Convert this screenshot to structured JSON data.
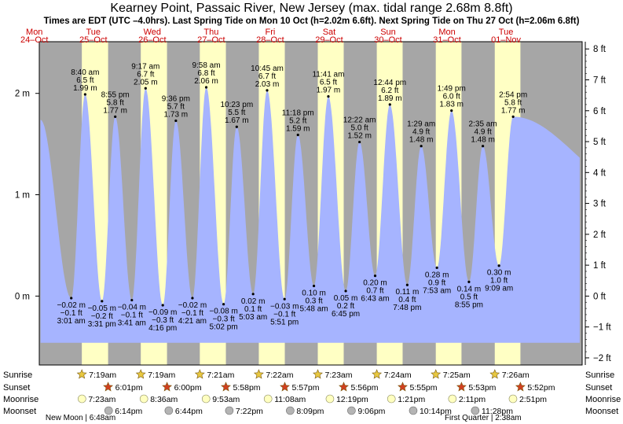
{
  "colors": {
    "night": "#a6a6a6",
    "day": "#ffffc4",
    "water": "#a6b4ff",
    "day_label": "#cc0000",
    "star_sunrise": "#e8c840",
    "star_sunset": "#d04020",
    "moonrise": "#ffffc0",
    "moonset": "#b4b4b4"
  },
  "chart_data": {
    "type": "area",
    "title": "Kearney Point, Passaic River, New Jersey (max. tidal range 2.68m 8.8ft)",
    "subtitle": "Times are EDT (UTC –4.0hrs). Last Spring Tide on Mon 10 Oct (h=2.02m 6.6ft). Next Spring Tide on Thu 27 Oct (h=2.06m 6.8ft)",
    "x_range_hours": [
      -10,
      211
    ],
    "y_range_m": [
      -0.68,
      2.51
    ],
    "y_left_ticks": [
      {
        "v": 0,
        "label": "0 m"
      },
      {
        "v": 1,
        "label": "1 m"
      },
      {
        "v": 2,
        "label": "2 m"
      }
    ],
    "y_right_ticks": [
      {
        "ft": 8,
        "label": "8 ft"
      },
      {
        "ft": 7,
        "label": "7 ft"
      },
      {
        "ft": 6,
        "label": "6 ft"
      },
      {
        "ft": 5,
        "label": "5 ft"
      },
      {
        "ft": 4,
        "label": "4 ft"
      },
      {
        "ft": 3,
        "label": "3 ft"
      },
      {
        "ft": 2,
        "label": "2 ft"
      },
      {
        "ft": 1,
        "label": "1 ft"
      },
      {
        "ft": 0,
        "label": "0 ft"
      },
      {
        "ft": -1,
        "label": "−1 ft"
      },
      {
        "ft": -2,
        "label": "−2 ft"
      }
    ],
    "days": [
      {
        "day": "Mon",
        "date": "24–Oct",
        "noon_h": -12
      },
      {
        "day": "Tue",
        "date": "25–Oct",
        "noon_h": 12
      },
      {
        "day": "Wed",
        "date": "26–Oct",
        "noon_h": 36
      },
      {
        "day": "Thu",
        "date": "27–Oct",
        "noon_h": 60
      },
      {
        "day": "Fri",
        "date": "28–Oct",
        "noon_h": 84
      },
      {
        "day": "Sat",
        "date": "29–Oct",
        "noon_h": 108
      },
      {
        "day": "Sun",
        "date": "30–Oct",
        "noon_h": 132
      },
      {
        "day": "Mon",
        "date": "31–Oct",
        "noon_h": 156
      },
      {
        "day": "Tue",
        "date": "01–Nov",
        "noon_h": 180
      }
    ],
    "daylight": [
      [
        7.32,
        18.02
      ],
      [
        31.32,
        42.0
      ],
      [
        55.35,
        65.97
      ],
      [
        79.37,
        89.95
      ],
      [
        103.38,
        113.93
      ],
      [
        127.4,
        137.92
      ],
      [
        151.42,
        161.88
      ],
      [
        175.43,
        185.87
      ]
    ],
    "curve_start": {
      "h": -9.5,
      "m": 1.74
    },
    "curve_end": {
      "h": 210.0,
      "m": 1.5
    },
    "tides": [
      {
        "time": "3:01 am",
        "h": 3.02,
        "m": -0.02,
        "ft": "−0.1 ft",
        "ml": "−0.02 m",
        "type": "low"
      },
      {
        "time": "8:40 am",
        "h": 8.67,
        "m": 1.99,
        "ft": "6.5 ft",
        "ml": "1.99 m",
        "type": "high"
      },
      {
        "time": "3:31 pm",
        "h": 15.52,
        "m": -0.05,
        "ft": "−0.2 ft",
        "ml": "−0.05 m",
        "type": "low"
      },
      {
        "time": "8:55 pm",
        "h": 20.92,
        "m": 1.77,
        "ft": "5.8 ft",
        "ml": "1.77 m",
        "type": "high"
      },
      {
        "time": "3:41 am",
        "h": 27.68,
        "m": -0.04,
        "ft": "−0.1 ft",
        "ml": "−0.04 m",
        "type": "low"
      },
      {
        "time": "9:17 am",
        "h": 33.28,
        "m": 2.05,
        "ft": "6.7 ft",
        "ml": "2.05 m",
        "type": "high"
      },
      {
        "time": "4:16 pm",
        "h": 40.27,
        "m": -0.09,
        "ft": "−0.3 ft",
        "ml": "−0.09 m",
        "type": "low"
      },
      {
        "time": "9:36 pm",
        "h": 45.6,
        "m": 1.73,
        "ft": "5.7 ft",
        "ml": "1.73 m",
        "type": "high"
      },
      {
        "time": "4:21 am",
        "h": 52.35,
        "m": -0.02,
        "ft": "−0.1 ft",
        "ml": "−0.02 m",
        "type": "low"
      },
      {
        "time": "9:58 am",
        "h": 57.97,
        "m": 2.06,
        "ft": "6.8 ft",
        "ml": "2.06 m",
        "type": "high"
      },
      {
        "time": "5:02 pm",
        "h": 65.03,
        "m": -0.08,
        "ft": "−0.3 ft",
        "ml": "−0.08 m",
        "type": "low"
      },
      {
        "time": "10:23 pm",
        "h": 70.38,
        "m": 1.67,
        "ft": "5.5 ft",
        "ml": "1.67 m",
        "type": "high"
      },
      {
        "time": "5:03 am",
        "h": 77.05,
        "m": 0.02,
        "ft": "0.1 ft",
        "ml": "0.02 m",
        "type": "low"
      },
      {
        "time": "10:45 am",
        "h": 82.75,
        "m": 2.03,
        "ft": "6.7 ft",
        "ml": "2.03 m",
        "type": "high"
      },
      {
        "time": "5:51 pm",
        "h": 89.85,
        "m": -0.03,
        "ft": "−0.1 ft",
        "ml": "−0.03 m",
        "type": "low"
      },
      {
        "time": "11:18 pm",
        "h": 95.3,
        "m": 1.59,
        "ft": "5.2 ft",
        "ml": "1.59 m",
        "type": "high"
      },
      {
        "time": "5:48 am",
        "h": 101.8,
        "m": 0.1,
        "ft": "0.3 ft",
        "ml": "0.10 m",
        "type": "low"
      },
      {
        "time": "11:41 am",
        "h": 107.68,
        "m": 1.97,
        "ft": "6.5 ft",
        "ml": "1.97 m",
        "type": "high"
      },
      {
        "time": "6:45 pm",
        "h": 114.75,
        "m": 0.05,
        "ft": "0.2 ft",
        "ml": "0.05 m",
        "type": "low"
      },
      {
        "time": "12:22 am",
        "h": 120.37,
        "m": 1.52,
        "ft": "5.0 ft",
        "ml": "1.52 m",
        "type": "high"
      },
      {
        "time": "6:43 am",
        "h": 126.72,
        "m": 0.2,
        "ft": "0.7 ft",
        "ml": "0.20 m",
        "type": "low"
      },
      {
        "time": "12:44 pm",
        "h": 132.73,
        "m": 1.89,
        "ft": "6.2 ft",
        "ml": "1.89 m",
        "type": "high"
      },
      {
        "time": "7:48 pm",
        "h": 139.8,
        "m": 0.11,
        "ft": "0.4 ft",
        "ml": "0.11 m",
        "type": "low"
      },
      {
        "time": "1:29 am",
        "h": 145.48,
        "m": 1.48,
        "ft": "4.9 ft",
        "ml": "1.48 m",
        "type": "high"
      },
      {
        "time": "7:53 am",
        "h": 151.88,
        "m": 0.28,
        "ft": "0.9 ft",
        "ml": "0.28 m",
        "type": "low"
      },
      {
        "time": "1:49 pm",
        "h": 157.82,
        "m": 1.83,
        "ft": "6.0 ft",
        "ml": "1.83 m",
        "type": "high"
      },
      {
        "time": "8:55 pm",
        "h": 164.92,
        "m": 0.14,
        "ft": "0.5 ft",
        "ml": "0.14 m",
        "type": "low"
      },
      {
        "time": "2:35 am",
        "h": 170.58,
        "m": 1.48,
        "ft": "4.9 ft",
        "ml": "1.48 m",
        "type": "high"
      },
      {
        "time": "9:09 am",
        "h": 177.15,
        "m": 0.3,
        "ft": "1.0 ft",
        "ml": "0.30 m",
        "type": "low"
      },
      {
        "time": "2:54 pm",
        "h": 182.9,
        "m": 1.77,
        "ft": "5.8 ft",
        "ml": "1.77 m",
        "type": "high"
      }
    ],
    "astro_labels": [
      "Sunrise",
      "Sunset",
      "Moonrise",
      "Moonset"
    ],
    "sunrise": [
      {
        "h": 7.32,
        "label": "7:19am"
      },
      {
        "h": 31.32,
        "label": "7:19am"
      },
      {
        "h": 55.35,
        "label": "7:21am"
      },
      {
        "h": 79.37,
        "label": "7:22am"
      },
      {
        "h": 103.38,
        "label": "7:23am"
      },
      {
        "h": 127.4,
        "label": "7:24am"
      },
      {
        "h": 151.42,
        "label": "7:25am"
      },
      {
        "h": 175.43,
        "label": "7:26am"
      }
    ],
    "sunset": [
      {
        "h": 18.02,
        "label": "6:01pm"
      },
      {
        "h": 42.0,
        "label": "6:00pm"
      },
      {
        "h": 65.97,
        "label": "5:58pm"
      },
      {
        "h": 89.95,
        "label": "5:57pm"
      },
      {
        "h": 113.93,
        "label": "5:56pm"
      },
      {
        "h": 137.92,
        "label": "5:55pm"
      },
      {
        "h": 161.88,
        "label": "5:53pm"
      },
      {
        "h": 185.87,
        "label": "5:52pm"
      }
    ],
    "moonrise": [
      {
        "h": 7.38,
        "label": "7:23am"
      },
      {
        "h": 32.6,
        "label": "8:36am"
      },
      {
        "h": 57.88,
        "label": "9:53am"
      },
      {
        "h": 83.13,
        "label": "11:08am"
      },
      {
        "h": 108.32,
        "label": "12:19pm"
      },
      {
        "h": 133.35,
        "label": "1:21pm"
      },
      {
        "h": 158.18,
        "label": "2:11pm"
      },
      {
        "h": 182.85,
        "label": "2:51pm"
      }
    ],
    "moonset": [
      {
        "h": 18.23,
        "label": "6:14pm"
      },
      {
        "h": 42.73,
        "label": "6:44pm"
      },
      {
        "h": 67.37,
        "label": "7:22pm"
      },
      {
        "h": 92.15,
        "label": "8:09pm"
      },
      {
        "h": 117.1,
        "label": "9:06pm"
      },
      {
        "h": 142.23,
        "label": "10:14pm"
      },
      {
        "h": 167.47,
        "label": "11:28pm"
      }
    ],
    "moon_phases": [
      {
        "label": "New Moon | 6:48am",
        "h": 6.8
      },
      {
        "label": "First Quarter | 2:38am",
        "h": 170.63
      }
    ]
  }
}
